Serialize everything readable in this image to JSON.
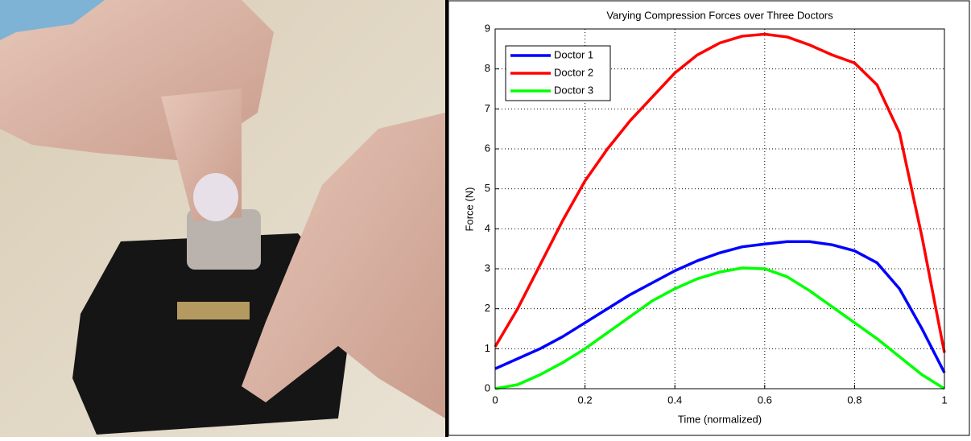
{
  "chart_data": {
    "type": "line",
    "title": "Varying Compression Forces over Three Doctors",
    "x_label": "Time (normalized)",
    "y_label": "Force (N)",
    "x": [
      0,
      0.05,
      0.1,
      0.15,
      0.2,
      0.25,
      0.3,
      0.35,
      0.4,
      0.45,
      0.5,
      0.55,
      0.6,
      0.65,
      0.7,
      0.75,
      0.8,
      0.85,
      0.9,
      0.95,
      1
    ],
    "series": [
      {
        "name": "Doctor 1",
        "color": "#0000ff",
        "values": [
          0.5,
          0.75,
          1.0,
          1.3,
          1.65,
          2.0,
          2.35,
          2.65,
          2.95,
          3.2,
          3.4,
          3.55,
          3.62,
          3.68,
          3.68,
          3.6,
          3.45,
          3.15,
          2.5,
          1.5,
          0.4
        ]
      },
      {
        "name": "Doctor 2",
        "color": "#ff0000",
        "values": [
          1.05,
          2.0,
          3.1,
          4.2,
          5.2,
          6.0,
          6.7,
          7.3,
          7.9,
          8.35,
          8.65,
          8.82,
          8.87,
          8.8,
          8.6,
          8.35,
          8.15,
          7.6,
          6.4,
          3.8,
          0.9
        ]
      },
      {
        "name": "Doctor 3",
        "color": "#00ff00",
        "values": [
          0,
          0.1,
          0.35,
          0.65,
          1.0,
          1.4,
          1.8,
          2.2,
          2.5,
          2.75,
          2.92,
          3.02,
          3.0,
          2.8,
          2.45,
          2.05,
          1.65,
          1.25,
          0.8,
          0.35,
          0
        ]
      }
    ],
    "xlim": [
      0,
      1
    ],
    "xticks": [
      0,
      0.2,
      0.4,
      0.6,
      0.8,
      1
    ],
    "ylim": [
      0,
      9
    ],
    "yticks": [
      0,
      1,
      2,
      3,
      4,
      5,
      6,
      7,
      8,
      9
    ],
    "grid": true,
    "legend": "upper-left"
  }
}
